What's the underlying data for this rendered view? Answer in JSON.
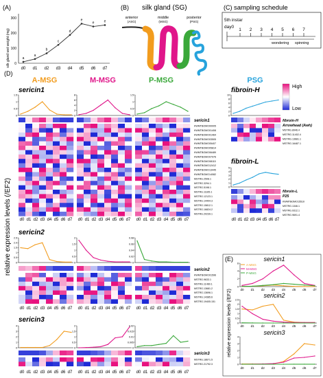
{
  "panels": {
    "A": {
      "letter": "(A)",
      "ylabel": "silk gland wet weight (mg)",
      "yticks": [
        "0",
        "100",
        "200",
        "300"
      ]
    },
    "B": {
      "letter": "(B)",
      "title": "silk gland (SG)",
      "anterior": "anterior",
      "anterior_abbr": "(ASG)",
      "middle": "middle",
      "middle_abbr": "(MSG)",
      "posterior": "posterior",
      "posterior_abbr": "(PSG)"
    },
    "C": {
      "letter": "(C)",
      "title": "sampling schedule",
      "instar": "5th instar",
      "day0": "day0",
      "ticks": [
        "1",
        "2",
        "3",
        "4",
        "5",
        "6",
        "7"
      ],
      "wondering": "wondering",
      "spinning": "spinning"
    },
    "D": {
      "letter": "(D)",
      "ylabel": "relative expression levels (/EF2)"
    },
    "E": {
      "letter": "(E)",
      "ylabel": "relative expression levels (/EF2)"
    }
  },
  "sections": {
    "a_msg": "A-MSG",
    "m_msg": "M-MSG",
    "p_msg": "P-MSG",
    "psg": "PSG"
  },
  "genes": {
    "sericin1": "sericin1",
    "sericin2": "sericin2",
    "sericin3": "sericin3",
    "fibroinH": "fibroin-H",
    "fibroinL": "fibroin-L"
  },
  "colorbar": {
    "high": "High",
    "low": "Low"
  },
  "days": [
    "d0",
    "d1",
    "d2",
    "d3",
    "d4",
    "d5",
    "d6",
    "d7"
  ],
  "tick_labels": {
    "s1_am": [
      "0",
      "0.5",
      "1",
      "1.5"
    ],
    "s1_mm": [
      "0",
      "2",
      "4",
      "6",
      "8"
    ],
    "s1_pm": [
      "0",
      "0.5",
      "1",
      "1.5"
    ],
    "s2_am": [
      "0",
      "0.5",
      "1",
      "1.5",
      "2.0",
      "2.5"
    ],
    "s2_mm": [
      "0",
      "0.5",
      "1",
      "1.5",
      "2"
    ],
    "s2_pm": [
      "0",
      "0.02",
      "0.04",
      "0.06",
      "0.08"
    ],
    "s3_am": [
      "0",
      "1",
      "2",
      "3",
      "4"
    ],
    "s3_mm": [
      "0",
      "0.5",
      "1",
      "1.5",
      "2"
    ],
    "s3_pm": [
      "0",
      "0.005",
      "0.01",
      "0.015",
      "0.02"
    ],
    "fh": [
      "0",
      "2",
      "4",
      "6",
      "8",
      "10"
    ],
    "fl": [
      "0",
      "1",
      "2",
      "3",
      "4",
      "5"
    ],
    "e1": [
      "0",
      "2",
      "4",
      "6"
    ],
    "e2": [
      "0",
      "0.5",
      "1",
      "1.5",
      "2",
      "2.5"
    ],
    "e3": [
      "0",
      "1",
      "2",
      "3",
      "4"
    ]
  },
  "heatmaps": {
    "sericin1": {
      "label": "sericin1",
      "rows": [
        "KWMTBOMO00005",
        "KWMTBOMO01408",
        "KWMTBOMO01464",
        "KWMTBOMO03505",
        "KWMTBOMO05407",
        "KWMTBOMO05814",
        "KWMTBOMO06489",
        "KWMTBOMO07976",
        "KWMTBOMO08115",
        "KWMTBOMO12412",
        "KWMTBOMO13445",
        "KWMTBOMO14082",
        "MSTRG.2508.1",
        "MSTRG.3294.1",
        "MSTRG.5198.1",
        "MSTRG.11165.1",
        "MSTRG.12123.1",
        "MSTRG.14404.3",
        "MSTRG.15812.1",
        "MSTRG.16824.2",
        "MSTRG.20239.1"
      ]
    },
    "sericin2": {
      "label": "sericin2",
      "rows": [
        "KWMTBOMO01596",
        "MSTRG.9633.1",
        "MSTRG.11460.1",
        "MSTRG.13681.2",
        "MSTRG.13696.1",
        "MSTRG.14385.6",
        "MSTRG.19405.151"
      ]
    },
    "sericin3": {
      "label": "sericin3",
      "rows": [
        "MSTRG.18671.5",
        "MSTRG.21792.3"
      ]
    },
    "fibroinH": {
      "label": "fibroin-H",
      "label2": "Arrowhead (Awh)",
      "rows": [
        "MSTRG.8946.4",
        "MSTRG.11402.4",
        "MSTRG.13681.1",
        "MSTRG.16487.1"
      ]
    },
    "fibroinL": {
      "label": "fibroin-L",
      "label2": "P25",
      "rows": [
        "KWMTBOMO15510",
        "MSTRG.1346.1",
        "MSTRG.9312.1",
        "MSTRG.9691.4"
      ]
    }
  },
  "chart_data": [
    {
      "type": "line",
      "panel": "A",
      "x": [
        "d0",
        "d1",
        "d2",
        "d3",
        "d4",
        "d5",
        "d6",
        "d7"
      ],
      "ylim": [
        0,
        350
      ],
      "ylabel": "silk gland wet weight (mg)",
      "series": [
        {
          "values": [
            10,
            30,
            70,
            130,
            200,
            280,
            260,
            270
          ]
        }
      ],
      "annotations": [
        "a",
        "a",
        "b",
        "c",
        "d",
        "e",
        "e",
        "e"
      ]
    },
    {
      "type": "line",
      "panel": "D",
      "gene": "sericin1",
      "section": "A-MSG",
      "x": [
        "d0",
        "d1",
        "d2",
        "d3",
        "d4",
        "d5",
        "d6",
        "d7"
      ],
      "ylim": [
        0,
        1.5
      ],
      "series": [
        {
          "name": "A-MSG",
          "values": [
            0.1,
            0.3,
            0.6,
            1.0,
            0.4,
            0.1,
            0.05,
            0.05
          ]
        }
      ]
    },
    {
      "type": "line",
      "panel": "D",
      "gene": "sericin1",
      "section": "M-MSG",
      "x": [
        "d0",
        "d1",
        "d2",
        "d3",
        "d4",
        "d5",
        "d6",
        "d7"
      ],
      "ylim": [
        0,
        8
      ],
      "series": [
        {
          "name": "M-MSG",
          "values": [
            0.3,
            0.8,
            2.0,
            4.0,
            6.0,
            3.0,
            0.8,
            0.3
          ]
        }
      ]
    },
    {
      "type": "line",
      "panel": "D",
      "gene": "sericin1",
      "section": "P-MSG",
      "x": [
        "d0",
        "d1",
        "d2",
        "d3",
        "d4",
        "d5",
        "d6",
        "d7"
      ],
      "ylim": [
        0,
        1.5
      ],
      "series": [
        {
          "name": "P-MSG",
          "values": [
            0.1,
            0.2,
            0.5,
            0.7,
            1.0,
            0.8,
            0.6,
            0.3
          ]
        }
      ]
    },
    {
      "type": "line",
      "panel": "D",
      "gene": "fibroin-H",
      "section": "PSG",
      "x": [
        "d0",
        "d1",
        "d2",
        "d3",
        "d4",
        "d5",
        "d6",
        "d7"
      ],
      "ylim": [
        0,
        10
      ],
      "series": [
        {
          "name": "PSG",
          "values": [
            1.0,
            2.0,
            3.5,
            4.5,
            5.5,
            6.5,
            7.0,
            7.5
          ]
        }
      ]
    },
    {
      "type": "line",
      "panel": "D",
      "gene": "fibroin-L",
      "section": "PSG",
      "x": [
        "d0",
        "d1",
        "d2",
        "d3",
        "d4",
        "d5",
        "d6",
        "d7"
      ],
      "ylim": [
        0,
        5
      ],
      "series": [
        {
          "name": "PSG",
          "values": [
            0.5,
            1.0,
            1.8,
            2.5,
            3.4,
            3.8,
            3.5,
            3.3
          ]
        }
      ]
    },
    {
      "type": "line",
      "panel": "D",
      "gene": "sericin2",
      "section": "A-MSG",
      "x": [
        "d0",
        "d1",
        "d2",
        "d3",
        "d4",
        "d5",
        "d6",
        "d7"
      ],
      "ylim": [
        0,
        2.5
      ],
      "series": [
        {
          "name": "A-MSG",
          "values": [
            1.5,
            1.4,
            1.8,
            2.0,
            0.3,
            0.1,
            0.05,
            0.05
          ]
        }
      ]
    },
    {
      "type": "line",
      "panel": "D",
      "gene": "sericin2",
      "section": "M-MSG",
      "x": [
        "d0",
        "d1",
        "d2",
        "d3",
        "d4",
        "d5",
        "d6",
        "d7"
      ],
      "ylim": [
        0,
        2
      ],
      "series": [
        {
          "name": "M-MSG",
          "values": [
            1.8,
            1.0,
            0.4,
            0.2,
            0.1,
            0.05,
            0.05,
            0.05
          ]
        }
      ]
    },
    {
      "type": "line",
      "panel": "D",
      "gene": "sericin2",
      "section": "P-MSG",
      "x": [
        "d0",
        "d1",
        "d2",
        "d3",
        "d4",
        "d5",
        "d6",
        "d7"
      ],
      "ylim": [
        0,
        0.08
      ],
      "series": [
        {
          "name": "P-MSG",
          "values": [
            0.07,
            0.01,
            0.005,
            0.002,
            0.002,
            0.001,
            0.001,
            0.001
          ]
        }
      ]
    },
    {
      "type": "line",
      "panel": "D",
      "gene": "sericin3",
      "section": "A-MSG",
      "x": [
        "d0",
        "d1",
        "d2",
        "d3",
        "d4",
        "d5",
        "d6",
        "d7"
      ],
      "ylim": [
        0,
        4
      ],
      "series": [
        {
          "name": "A-MSG",
          "values": [
            0.05,
            0.05,
            0.05,
            0.05,
            0.4,
            1.5,
            3.0,
            2.8
          ]
        }
      ]
    },
    {
      "type": "line",
      "panel": "D",
      "gene": "sericin3",
      "section": "M-MSG",
      "x": [
        "d0",
        "d1",
        "d2",
        "d3",
        "d4",
        "d5",
        "d6",
        "d7"
      ],
      "ylim": [
        0,
        2
      ],
      "series": [
        {
          "name": "M-MSG",
          "values": [
            0.0,
            0.02,
            0.05,
            0.1,
            0.3,
            0.9,
            1.0,
            1.9
          ]
        }
      ]
    },
    {
      "type": "line",
      "panel": "D",
      "gene": "sericin3",
      "section": "P-MSG",
      "x": [
        "d0",
        "d1",
        "d2",
        "d3",
        "d4",
        "d5",
        "d6",
        "d7"
      ],
      "ylim": [
        0,
        0.02
      ],
      "series": [
        {
          "name": "P-MSG",
          "values": [
            0.001,
            0.002,
            0.002,
            0.003,
            0.004,
            0.011,
            0.005,
            0.006
          ]
        }
      ]
    },
    {
      "type": "line",
      "panel": "E",
      "title": "sericin1",
      "x": [
        "d0",
        "d1",
        "d2",
        "d3",
        "d4",
        "d5",
        "d6",
        "d7"
      ],
      "ylim": [
        0,
        6
      ],
      "series": [
        {
          "name": "A-MSG",
          "values": [
            0.05,
            0.1,
            0.2,
            0.4,
            0.2,
            0.05,
            0.02,
            0.02
          ]
        },
        {
          "name": "M-MSG",
          "values": [
            0.3,
            0.8,
            2.0,
            4.0,
            5.5,
            3.0,
            0.8,
            0.3
          ]
        },
        {
          "name": "P-MSG",
          "values": [
            0.05,
            0.1,
            0.3,
            0.5,
            0.8,
            0.6,
            0.4,
            0.2
          ]
        }
      ]
    },
    {
      "type": "line",
      "panel": "E",
      "title": "sericin2",
      "x": [
        "d0",
        "d1",
        "d2",
        "d3",
        "d4",
        "d5",
        "d6",
        "d7"
      ],
      "ylim": [
        0,
        2.5
      ],
      "series": [
        {
          "name": "A-MSG",
          "values": [
            1.5,
            1.4,
            1.8,
            2.0,
            0.3,
            0.1,
            0.05,
            0.05
          ]
        },
        {
          "name": "M-MSG",
          "values": [
            1.8,
            1.0,
            0.4,
            0.2,
            0.1,
            0.05,
            0.05,
            0.05
          ]
        },
        {
          "name": "P-MSG",
          "values": [
            0.02,
            0.01,
            0.0,
            0.0,
            0.0,
            0.0,
            0.0,
            0.0
          ]
        }
      ]
    },
    {
      "type": "line",
      "panel": "E",
      "title": "sericin3",
      "x": [
        "d0",
        "d1",
        "d2",
        "d3",
        "d4",
        "d5",
        "d6",
        "d7"
      ],
      "ylim": [
        0,
        4
      ],
      "series": [
        {
          "name": "A-MSG",
          "values": [
            0.05,
            0.05,
            0.05,
            0.05,
            0.4,
            1.5,
            3.0,
            2.8
          ]
        },
        {
          "name": "M-MSG",
          "values": [
            0.0,
            0.02,
            0.05,
            0.1,
            0.3,
            0.9,
            1.0,
            1.2
          ]
        },
        {
          "name": "P-MSG",
          "values": [
            0.0,
            0.0,
            0.0,
            0.0,
            0.0,
            0.01,
            0.01,
            0.01
          ]
        }
      ]
    }
  ],
  "legend_E": [
    "A-MSG",
    "M-MSG",
    "P-MSG"
  ],
  "colors": {
    "a_msg": "#f29c1e",
    "m_msg": "#e0168a",
    "p_msg": "#3aa83a",
    "psg": "#27a3dc",
    "high": "#e8127f",
    "low": "#1f2bd6"
  }
}
